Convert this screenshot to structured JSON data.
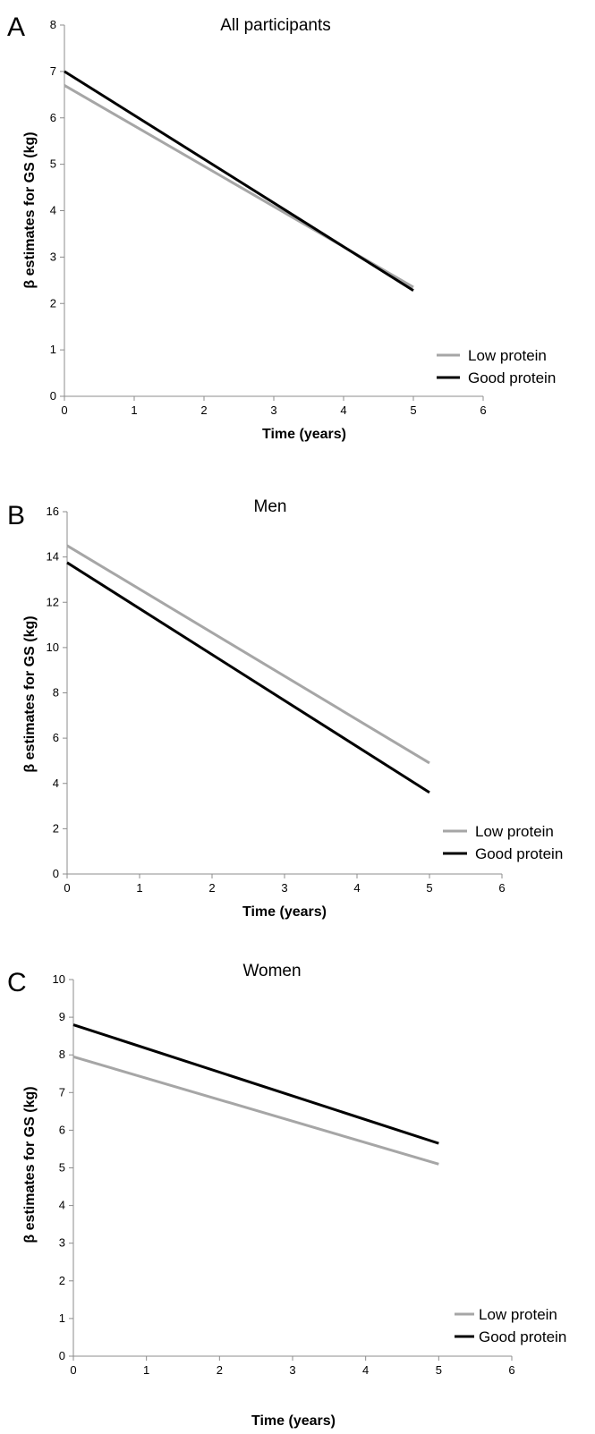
{
  "chart_data": [
    {
      "type": "line",
      "panel_label": "A",
      "title": "All participants",
      "xlabel": "Time (years)",
      "ylabel": "β estimates for GS (kg)",
      "xlim": [
        0,
        6
      ],
      "ylim": [
        0,
        8
      ],
      "xticks": [
        0,
        1,
        2,
        3,
        4,
        5,
        6
      ],
      "yticks": [
        0,
        1,
        2,
        3,
        4,
        5,
        6,
        7,
        8
      ],
      "grid": false,
      "legend_position": "bottom-right",
      "series": [
        {
          "name": "Low protein",
          "color": "#a6a6a6",
          "x": [
            0,
            5
          ],
          "y": [
            6.7,
            2.35
          ]
        },
        {
          "name": "Good protein",
          "color": "#000000",
          "x": [
            0,
            5
          ],
          "y": [
            7.0,
            2.28
          ]
        }
      ]
    },
    {
      "type": "line",
      "panel_label": "B",
      "title": "Men",
      "xlabel": "Time (years)",
      "ylabel": "β estimates for GS (kg)",
      "xlim": [
        0,
        6
      ],
      "ylim": [
        0,
        16
      ],
      "xticks": [
        0,
        1,
        2,
        3,
        4,
        5,
        6
      ],
      "yticks": [
        0,
        2,
        4,
        6,
        8,
        10,
        12,
        14,
        16
      ],
      "grid": false,
      "legend_position": "bottom-right",
      "series": [
        {
          "name": "Low protein",
          "color": "#a6a6a6",
          "x": [
            0,
            5
          ],
          "y": [
            14.5,
            4.9
          ]
        },
        {
          "name": "Good protein",
          "color": "#000000",
          "x": [
            0,
            5
          ],
          "y": [
            13.75,
            3.6
          ]
        }
      ]
    },
    {
      "type": "line",
      "panel_label": "C",
      "title": "Women",
      "xlabel": "Time (years)",
      "ylabel": "β estimates for GS (kg)",
      "xlim": [
        0,
        6
      ],
      "ylim": [
        0,
        10
      ],
      "xticks": [
        0,
        1,
        2,
        3,
        4,
        5,
        6
      ],
      "yticks": [
        0,
        1,
        2,
        3,
        4,
        5,
        6,
        7,
        8,
        9,
        10
      ],
      "grid": false,
      "legend_position": "bottom-right",
      "series": [
        {
          "name": "Low protein",
          "color": "#a6a6a6",
          "x": [
            0,
            5
          ],
          "y": [
            7.95,
            5.1
          ]
        },
        {
          "name": "Good protein",
          "color": "#000000",
          "x": [
            0,
            5
          ],
          "y": [
            8.8,
            5.65
          ]
        }
      ]
    }
  ]
}
